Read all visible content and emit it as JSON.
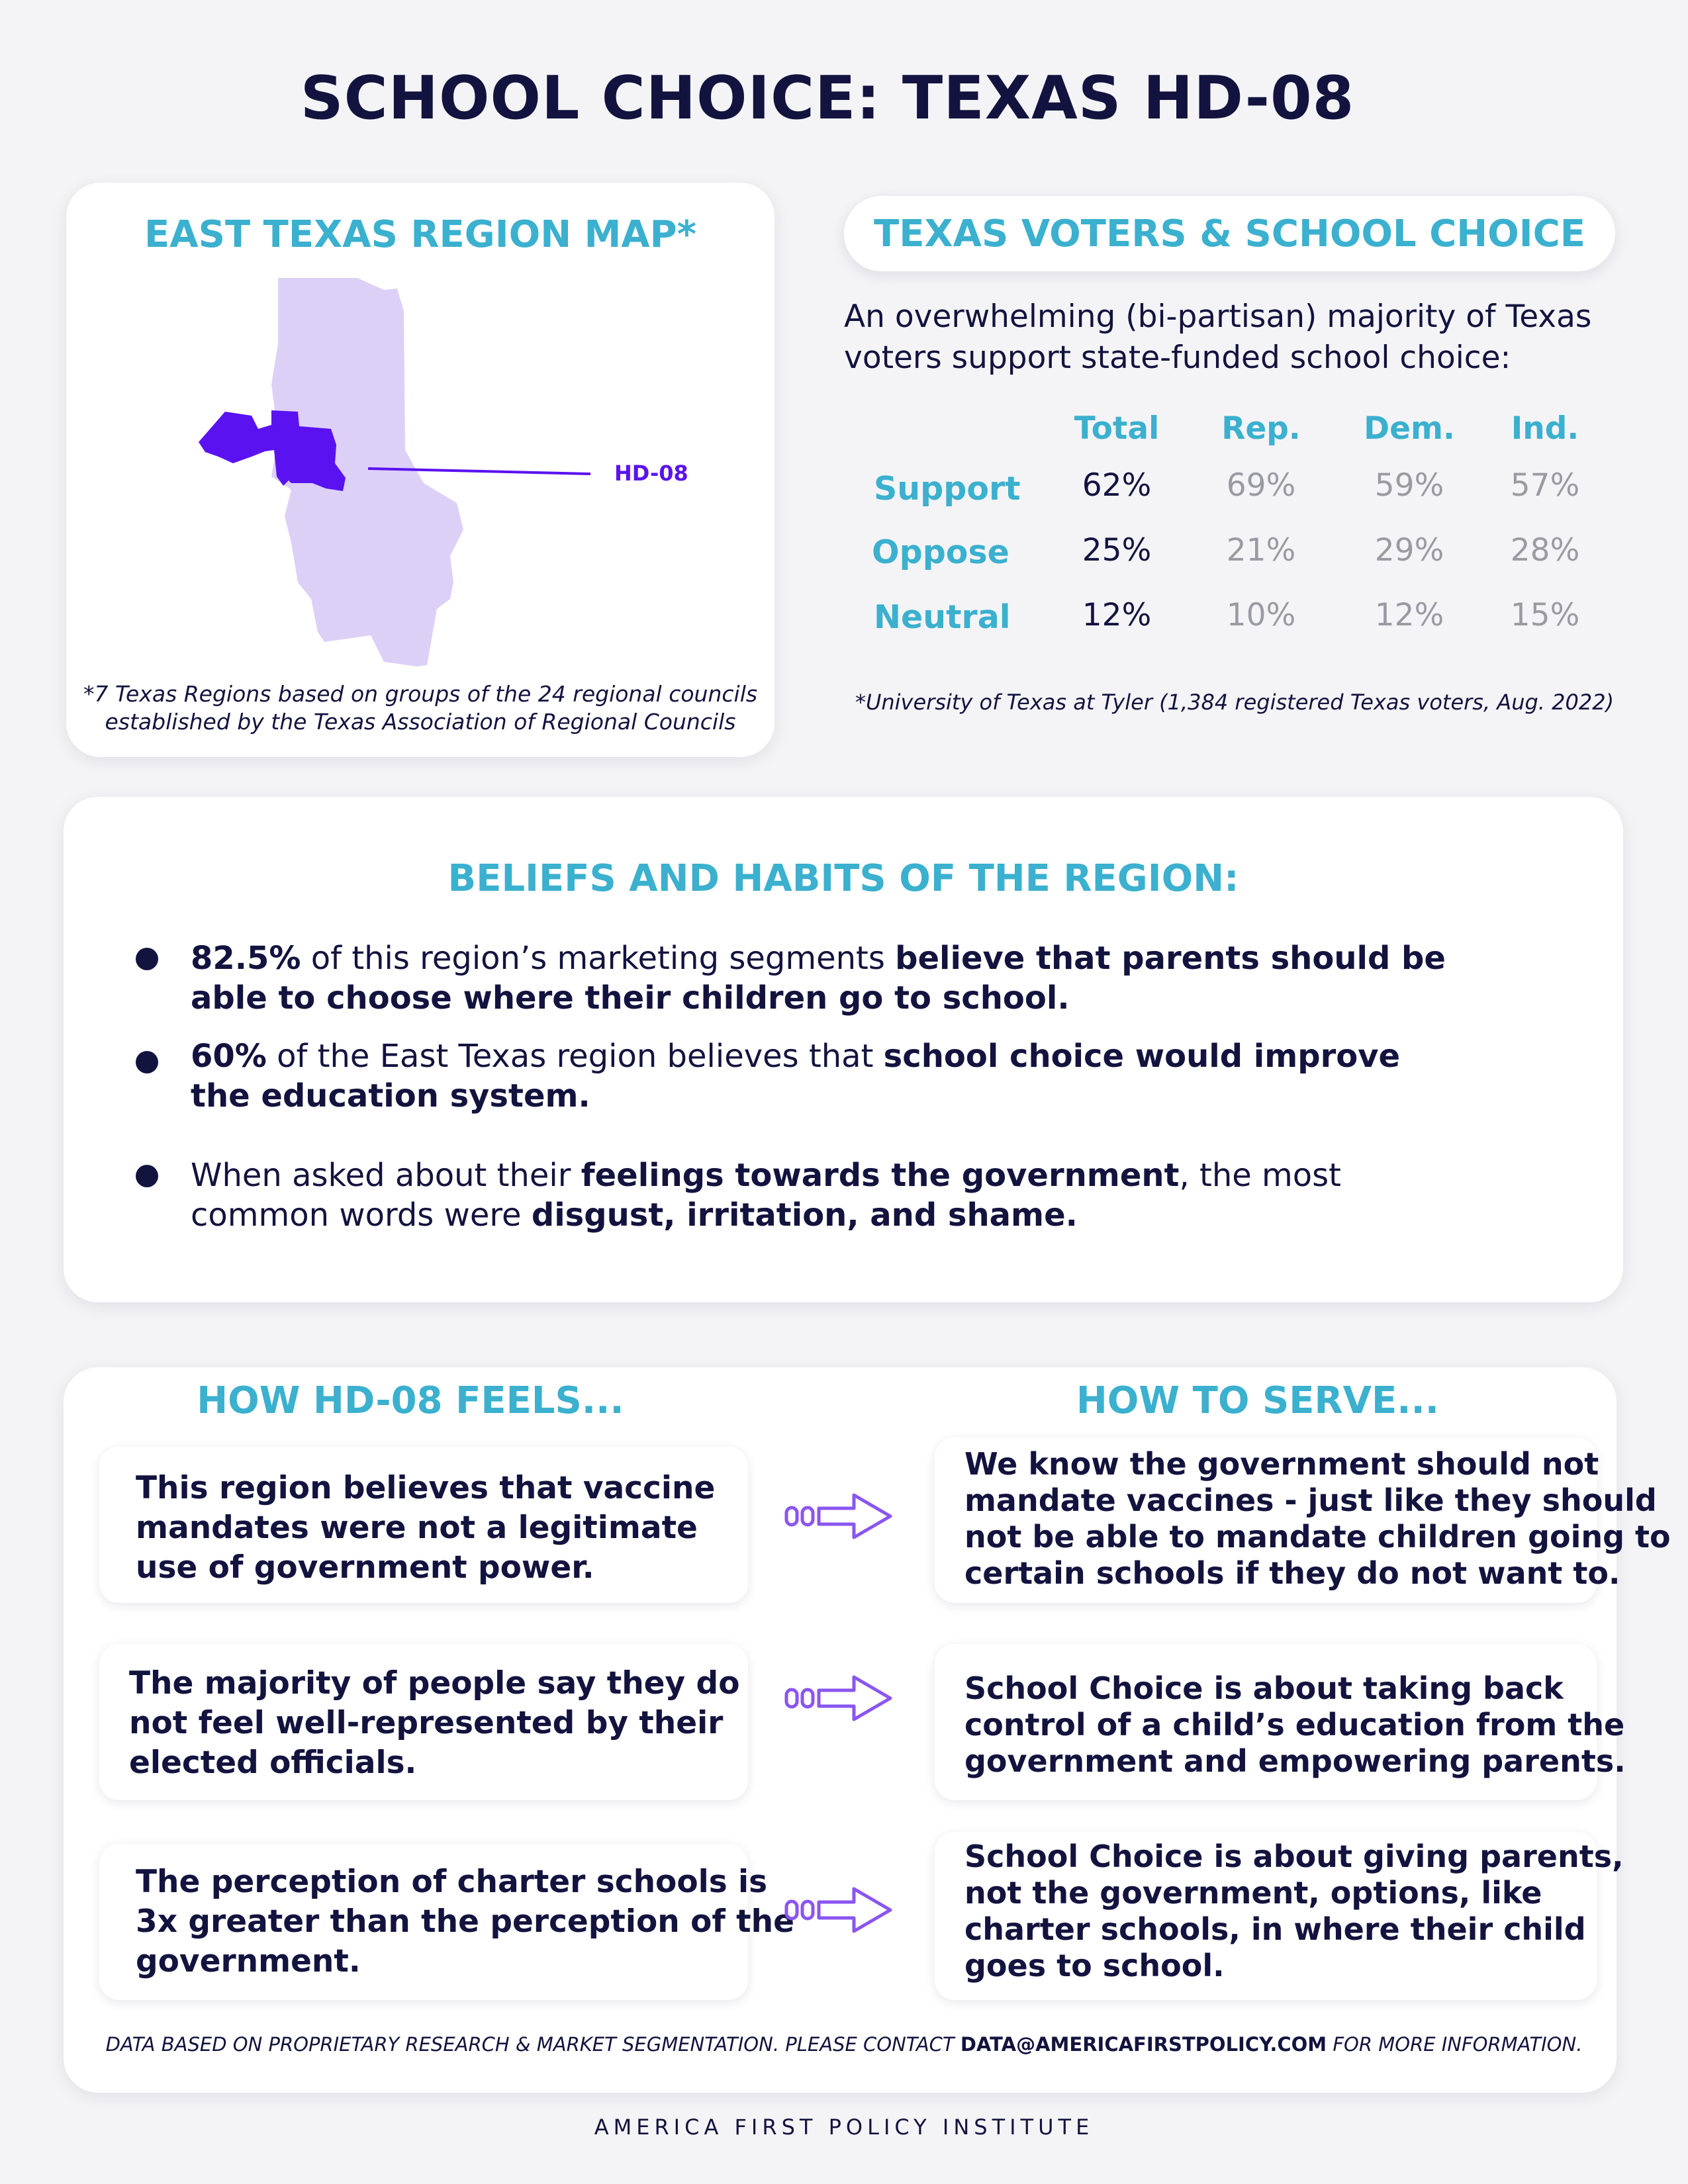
{
  "title": "SCHOOL CHOICE: TEXAS HD-08",
  "map_card": {
    "title": "EAST TEXAS REGION MAP*",
    "district_label": "HD-08",
    "note_line1": "*7 Texas Regions based on groups of the 24 regional councils",
    "note_line2": "established by the Texas Association of Regional Councils"
  },
  "voters": {
    "title": "TEXAS VOTERS & SCHOOL CHOICE",
    "intro_line1": "An overwhelming (bi-partisan) majority of Texas",
    "intro_line2": "voters support state-funded school choice:",
    "columns": [
      "Total",
      "Rep.",
      "Dem.",
      "Ind."
    ],
    "rows": [
      {
        "label": "Support",
        "values": [
          "62%",
          "69%",
          "59%",
          "57%"
        ]
      },
      {
        "label": "Oppose",
        "values": [
          "25%",
          "21%",
          "29%",
          "28%"
        ]
      },
      {
        "label": "Neutral",
        "values": [
          "12%",
          "10%",
          "12%",
          "15%"
        ]
      }
    ],
    "source": "*University of Texas at Tyler (1,384 registered Texas voters, Aug. 2022)"
  },
  "beliefs": {
    "title": "BELIEFS AND HABITS OF THE REGION:",
    "b1": {
      "stat": "82.5%",
      "text": " of this region’s marketing segments ",
      "bold": "believe that parents should be able to choose where their children go to school."
    },
    "b2": {
      "stat": "60%",
      "text": " of the East Texas region believes that ",
      "bold": "school choice would improve the education system."
    },
    "b3": {
      "text1": "When asked about their ",
      "bold1": "feelings towards the government",
      "text2": ", the most common words were ",
      "bold2": "disgust, irritation, and shame."
    }
  },
  "feels": {
    "left_title": "HOW HD-08 FEELS...",
    "right_title": "HOW TO SERVE...",
    "pairs": [
      {
        "feel": [
          "This region believes that vaccine",
          "mandates were not a legitimate",
          "use of government power."
        ],
        "serve": [
          "We know the government should not",
          "mandate vaccines - just like they should",
          "not be able to mandate children going to",
          "certain schools if they do not want to."
        ]
      },
      {
        "feel": [
          "The majority of people say they do",
          "not feel well-represented by their",
          "elected officials."
        ],
        "serve": [
          "School Choice is about taking back",
          "control of a child’s education from the",
          "government and empowering parents."
        ]
      },
      {
        "feel": [
          "The perception of charter schools is",
          "3x greater than the perception of the",
          "government."
        ],
        "serve": [
          "School Choice is about giving parents,",
          "not the government, options, like",
          "charter schools, in where their child",
          "goes to school."
        ]
      }
    ]
  },
  "footer": {
    "note_pre": "DATA BASED ON PROPRIETARY RESEARCH & MARKET SEGMENTATION. PLEASE CONTACT ",
    "email": "DATA@AMERICAFIRSTPOLICY.COM",
    "note_post": " FOR MORE INFORMATION.",
    "brand": "AMERICA FIRST POLICY INSTITUTE"
  },
  "colors": {
    "navy": "#13133f",
    "teal": "#3bb0cf",
    "purple": "#5a12f0",
    "lavender": "#ddd0f7",
    "arrow": "#8a55f0"
  }
}
